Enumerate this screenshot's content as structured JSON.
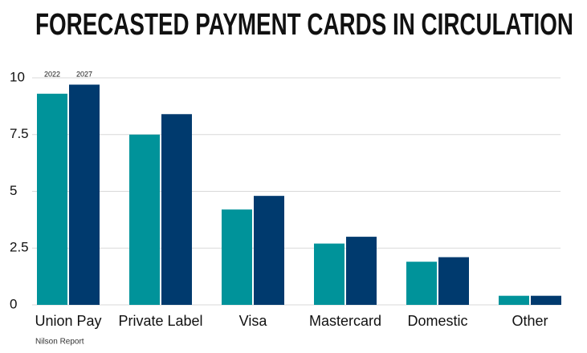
{
  "chart_data": {
    "type": "bar",
    "title": "FORECASTED PAYMENT CARDS IN CIRCULATION",
    "categories": [
      "Union Pay",
      "Private Label",
      "Visa",
      "Mastercard",
      "Domestic",
      "Other"
    ],
    "series": [
      {
        "name": "2022",
        "color": "#00939a",
        "values": [
          9.3,
          7.5,
          4.2,
          2.7,
          1.9,
          0.4
        ]
      },
      {
        "name": "2027",
        "color": "#003a6e",
        "values": [
          9.7,
          8.4,
          4.8,
          3.0,
          2.1,
          0.4
        ]
      }
    ],
    "ylim": [
      0,
      10
    ],
    "yticks": [
      0,
      2.5,
      5,
      7.5,
      10
    ],
    "grid": true,
    "source": "Nilson Report"
  }
}
